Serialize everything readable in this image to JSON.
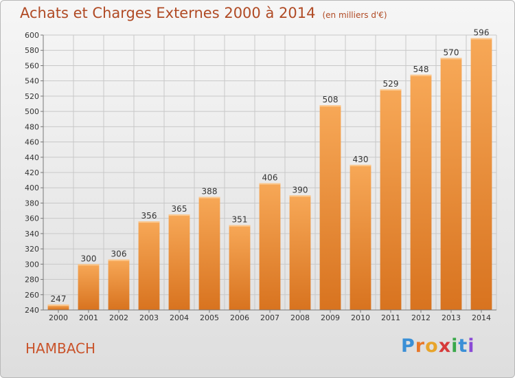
{
  "header": {
    "title": "Achats et Charges Externes 2000 à 2014",
    "subtitle": "(en milliers d'€)"
  },
  "footer": {
    "commune": "HAMBACH",
    "logo_letters": [
      "P",
      "r",
      "o",
      "x",
      "i",
      "t",
      "i"
    ],
    "logo_colors": [
      "#3a8fd6",
      "#e8772a",
      "#e8a42a",
      "#d63a3a",
      "#3aa84a",
      "#3a8fd6",
      "#8a4ad6"
    ]
  },
  "chart_data": {
    "type": "bar",
    "categories": [
      "2000",
      "2001",
      "2002",
      "2003",
      "2004",
      "2005",
      "2006",
      "2007",
      "2008",
      "2009",
      "2010",
      "2011",
      "2012",
      "2013",
      "2014"
    ],
    "values": [
      247,
      300,
      306,
      356,
      365,
      388,
      351,
      406,
      390,
      508,
      430,
      529,
      548,
      570,
      596
    ],
    "ylim": [
      240,
      600
    ],
    "yticks": [
      "240",
      "260",
      "280",
      "300",
      "320",
      "340",
      "360",
      "380",
      "400",
      "420",
      "440",
      "460",
      "480",
      "500",
      "520",
      "540",
      "560",
      "580",
      "600"
    ],
    "grid": true,
    "bar_color": "#f0923a"
  }
}
